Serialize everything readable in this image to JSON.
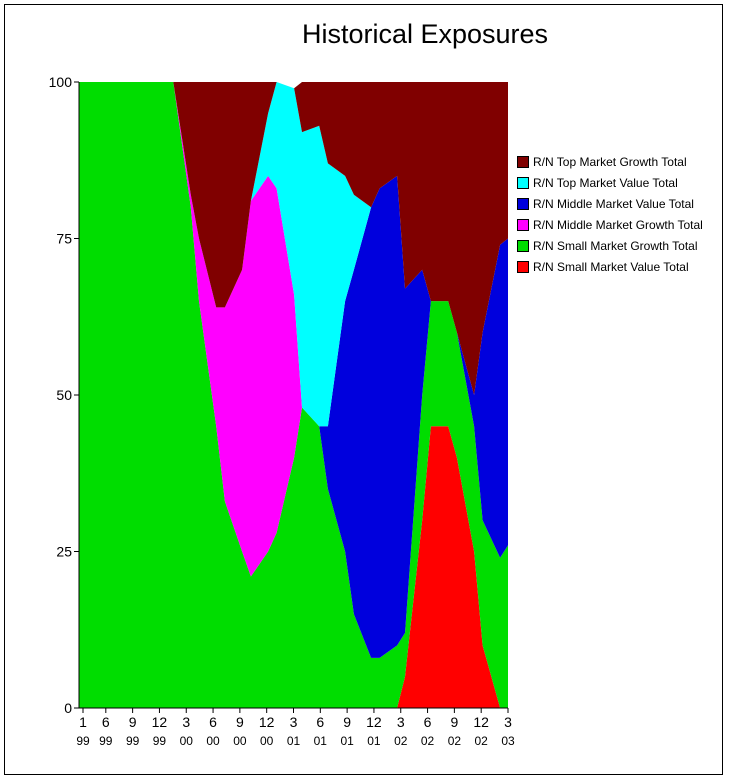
{
  "chart_data": {
    "type": "area",
    "stacked": true,
    "title": "Historical Exposures",
    "xlabel": "",
    "ylabel": "",
    "ylim": [
      0,
      100
    ],
    "y_ticks": [
      "0",
      "25",
      "50",
      "75",
      "100"
    ],
    "x_tick_labels": [
      {
        "m": "1",
        "y": "99"
      },
      {
        "m": "6",
        "y": "99"
      },
      {
        "m": "9",
        "y": "99"
      },
      {
        "m": "12",
        "y": "99"
      },
      {
        "m": "3",
        "y": "00"
      },
      {
        "m": "6",
        "y": "00"
      },
      {
        "m": "9",
        "y": "00"
      },
      {
        "m": "12",
        "y": "00"
      },
      {
        "m": "3",
        "y": "01"
      },
      {
        "m": "6",
        "y": "01"
      },
      {
        "m": "9",
        "y": "01"
      },
      {
        "m": "12",
        "y": "01"
      },
      {
        "m": "3",
        "y": "02"
      },
      {
        "m": "6",
        "y": "02"
      },
      {
        "m": "9",
        "y": "02"
      },
      {
        "m": "12",
        "y": "02"
      },
      {
        "m": "3",
        "y": "03"
      }
    ],
    "x": [
      "1999-01",
      "1999-06",
      "1999-09",
      "1999-12",
      "2000-02",
      "2000-03",
      "2000-05",
      "2000-06",
      "2000-08",
      "2000-09",
      "2000-11",
      "2000-12",
      "2001-02",
      "2001-03",
      "2001-05",
      "2001-06",
      "2001-08",
      "2001-09",
      "2001-11",
      "2001-12",
      "2002-02",
      "2002-03",
      "2002-05",
      "2002-06",
      "2002-08",
      "2002-09",
      "2002-11",
      "2002-12",
      "2003-02",
      "2003-03"
    ],
    "legend_position": "right",
    "grid": false,
    "series": [
      {
        "name": "R/N Small Market Value Total",
        "color": "#ff0000",
        "values": [
          0,
          0,
          0,
          0,
          0,
          0,
          0,
          0,
          0,
          0,
          0,
          0,
          0,
          0,
          0,
          0,
          0,
          0,
          0,
          0,
          0,
          5,
          30,
          45,
          45,
          40,
          25,
          10,
          0,
          0
        ]
      },
      {
        "name": "R/N Small Market Growth Total",
        "color": "#00dd00",
        "values": [
          100,
          100,
          100,
          100,
          80,
          65,
          45,
          33,
          25,
          21,
          25,
          28,
          40,
          48,
          45,
          35,
          25,
          15,
          8,
          8,
          10,
          7,
          20,
          20,
          20,
          20,
          20,
          20,
          24,
          26
        ]
      },
      {
        "name": "R/N Middle Market Growth Total",
        "color": "#ff00ff",
        "values": [
          0,
          0,
          0,
          0,
          2,
          10,
          19,
          31,
          45,
          60,
          60,
          55,
          26,
          0,
          0,
          0,
          0,
          0,
          0,
          0,
          0,
          0,
          0,
          0,
          0,
          0,
          0,
          0,
          0,
          0
        ]
      },
      {
        "name": "R/N Middle Market Value Total",
        "color": "#0000dd",
        "values": [
          0,
          0,
          0,
          0,
          0,
          0,
          0,
          0,
          0,
          0,
          0,
          0,
          0,
          0,
          0,
          10,
          40,
          55,
          72,
          75,
          75,
          55,
          20,
          0,
          0,
          0,
          5,
          30,
          50,
          49
        ]
      },
      {
        "name": "R/N Top Market Value Total",
        "color": "#00ffff",
        "values": [
          0,
          0,
          0,
          0,
          0,
          0,
          0,
          0,
          0,
          0,
          10,
          17,
          33,
          44,
          48,
          42,
          20,
          12,
          0,
          0,
          0,
          0,
          0,
          0,
          0,
          0,
          0,
          0,
          0,
          0
        ]
      },
      {
        "name": "R/N Top Market Growth Total",
        "color": "#800000",
        "values": [
          0,
          0,
          0,
          0,
          18,
          25,
          36,
          36,
          30,
          19,
          5,
          0,
          0,
          8,
          7,
          13,
          15,
          18,
          20,
          17,
          15,
          33,
          30,
          35,
          35,
          40,
          50,
          40,
          26,
          25
        ]
      }
    ]
  }
}
